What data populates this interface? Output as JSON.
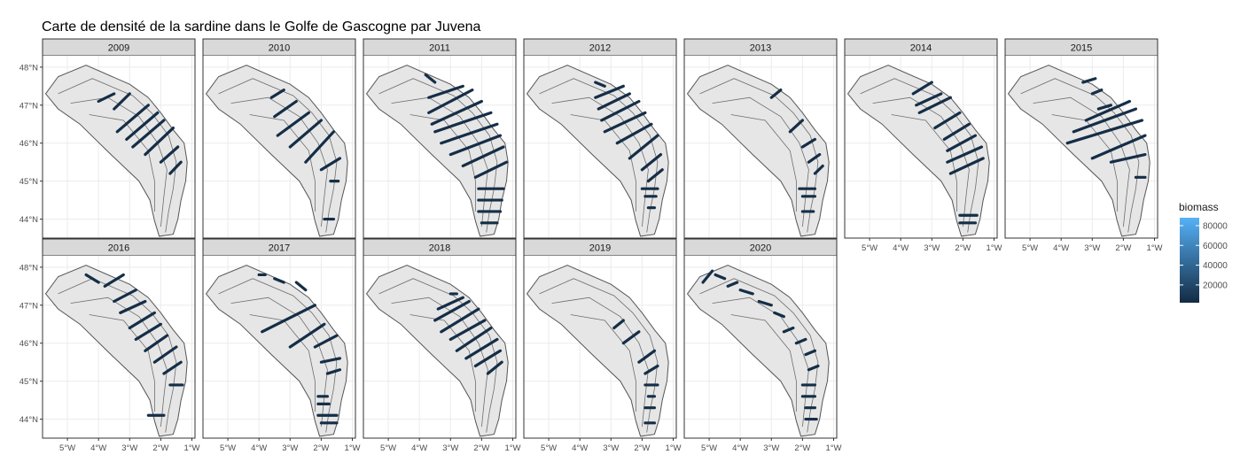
{
  "title": "Carte de densité de la sardine dans le Golfe de Gascogne par Juvena",
  "chart_data": {
    "type": "map-facets",
    "title": "Carte de densité de la sardine dans le Golfe de Gascogne par Juvena",
    "facet_by": "year",
    "x_ticks": [
      "5°W",
      "4°W",
      "3°W",
      "2°W",
      "1°W"
    ],
    "x_tick_values": [
      -5,
      -4,
      -3,
      -2,
      -1
    ],
    "y_ticks": [
      "48°N",
      "47°N",
      "46°N",
      "45°N",
      "44°N"
    ],
    "y_tick_values": [
      48,
      47,
      46,
      45,
      44
    ],
    "xlim": [
      -5.8,
      -0.9
    ],
    "ylim": [
      43.5,
      48.3
    ],
    "legend": {
      "title": "biomass",
      "position": "right",
      "ticks": [
        80000,
        60000,
        40000,
        20000
      ],
      "labels": [
        "80000",
        "60000",
        "40000",
        "20000"
      ],
      "range": [
        2000,
        88000
      ],
      "low_color": "#132b43",
      "high_color": "#56b1f7"
    },
    "coast": [
      [
        -5.7,
        47.3
      ],
      [
        -5.3,
        47.75
      ],
      [
        -4.4,
        48.05
      ],
      [
        -3.0,
        47.55
      ],
      [
        -2.4,
        47.2
      ],
      [
        -2.0,
        46.8
      ],
      [
        -1.6,
        46.35
      ],
      [
        -1.25,
        46.0
      ],
      [
        -1.15,
        45.5
      ],
      [
        -1.2,
        45.0
      ],
      [
        -1.35,
        44.5
      ],
      [
        -1.45,
        44.0
      ],
      [
        -1.6,
        43.6
      ],
      [
        -2.05,
        43.55
      ]
    ],
    "shelf_edge": [
      [
        -2.05,
        43.55
      ],
      [
        -2.2,
        43.95
      ],
      [
        -2.35,
        44.5
      ],
      [
        -2.7,
        45.0
      ],
      [
        -3.6,
        45.7
      ],
      [
        -4.6,
        46.5
      ],
      [
        -5.3,
        46.9
      ],
      [
        -5.7,
        47.3
      ]
    ],
    "isobaths": [
      [
        [
          -5.3,
          47.3
        ],
        [
          -4.2,
          47.7
        ],
        [
          -2.9,
          47.25
        ],
        [
          -2.3,
          46.8
        ],
        [
          -1.75,
          46.2
        ],
        [
          -1.5,
          45.5
        ],
        [
          -1.6,
          44.8
        ],
        [
          -1.75,
          44.2
        ],
        [
          -1.85,
          43.65
        ]
      ],
      [
        [
          -4.9,
          47.05
        ],
        [
          -3.7,
          47.2
        ],
        [
          -2.7,
          46.7
        ],
        [
          -2.1,
          46.0
        ],
        [
          -1.8,
          45.3
        ],
        [
          -1.9,
          44.6
        ],
        [
          -2.0,
          43.8
        ]
      ],
      [
        [
          -4.3,
          46.75
        ],
        [
          -3.2,
          46.6
        ],
        [
          -2.4,
          45.8
        ],
        [
          -2.2,
          45.0
        ],
        [
          -2.2,
          44.2
        ]
      ]
    ],
    "panels": [
      {
        "year": "2009",
        "transects": [
          [
            -4.0,
            47.1,
            -3.5,
            47.3
          ],
          [
            -3.5,
            46.9,
            -3.0,
            47.3
          ],
          [
            -3.4,
            46.3,
            -2.4,
            47.0
          ],
          [
            -3.1,
            46.1,
            -2.1,
            46.8
          ],
          [
            -2.9,
            45.9,
            -1.9,
            46.6
          ],
          [
            -2.5,
            45.7,
            -1.6,
            46.4
          ],
          [
            -2.0,
            45.5,
            -1.45,
            45.9
          ],
          [
            -1.7,
            45.2,
            -1.35,
            45.5
          ]
        ]
      },
      {
        "year": "2010",
        "transects": [
          [
            -3.6,
            47.2,
            -3.2,
            47.4
          ],
          [
            -3.5,
            46.7,
            -2.8,
            47.1
          ],
          [
            -3.4,
            46.2,
            -2.4,
            46.8
          ],
          [
            -3.0,
            45.9,
            -2.0,
            46.6
          ],
          [
            -2.5,
            45.5,
            -1.6,
            46.3
          ],
          [
            -2.0,
            45.3,
            -1.4,
            45.6
          ],
          [
            -1.7,
            45.0,
            -1.45,
            45.0
          ],
          [
            -1.9,
            44.0,
            -1.6,
            44.0
          ]
        ]
      },
      {
        "year": "2011",
        "transects": [
          [
            -3.8,
            47.8,
            -3.5,
            47.6
          ],
          [
            -3.7,
            47.2,
            -2.6,
            47.5
          ],
          [
            -3.7,
            46.8,
            -2.3,
            47.4
          ],
          [
            -3.6,
            46.5,
            -2.0,
            47.1
          ],
          [
            -3.5,
            46.3,
            -1.7,
            46.8
          ],
          [
            -3.3,
            46.0,
            -1.5,
            46.5
          ],
          [
            -3.0,
            45.7,
            -1.4,
            46.2
          ],
          [
            -2.6,
            45.4,
            -1.3,
            45.9
          ],
          [
            -2.2,
            45.1,
            -1.2,
            45.5
          ],
          [
            -2.1,
            44.8,
            -1.3,
            44.8
          ],
          [
            -2.1,
            44.5,
            -1.35,
            44.5
          ],
          [
            -2.1,
            44.2,
            -1.4,
            44.2
          ],
          [
            -2.0,
            43.9,
            -1.5,
            43.9
          ]
        ]
      },
      {
        "year": "2012",
        "transects": [
          [
            -3.5,
            47.6,
            -3.2,
            47.5
          ],
          [
            -3.5,
            47.2,
            -2.6,
            47.5
          ],
          [
            -3.4,
            46.9,
            -2.4,
            47.3
          ],
          [
            -3.3,
            46.6,
            -2.1,
            47.1
          ],
          [
            -3.2,
            46.3,
            -1.9,
            46.8
          ],
          [
            -2.8,
            46.0,
            -1.7,
            46.5
          ],
          [
            -2.4,
            45.6,
            -1.5,
            46.2
          ],
          [
            -2.0,
            45.3,
            -1.4,
            45.7
          ],
          [
            -1.8,
            45.0,
            -1.35,
            45.3
          ],
          [
            -2.0,
            44.8,
            -1.5,
            44.8
          ],
          [
            -1.9,
            44.6,
            -1.55,
            44.6
          ],
          [
            -1.8,
            44.3,
            -1.6,
            44.3
          ]
        ]
      },
      {
        "year": "2013",
        "transects": [
          [
            -3.0,
            47.2,
            -2.7,
            47.4
          ],
          [
            -2.4,
            46.3,
            -2.0,
            46.6
          ],
          [
            -2.0,
            45.9,
            -1.6,
            46.1
          ],
          [
            -1.8,
            45.5,
            -1.45,
            45.7
          ],
          [
            -1.6,
            45.2,
            -1.35,
            45.4
          ],
          [
            -2.1,
            44.8,
            -1.6,
            44.8
          ],
          [
            -2.0,
            44.6,
            -1.6,
            44.6
          ],
          [
            -2.0,
            44.2,
            -1.65,
            44.2
          ]
        ]
      },
      {
        "year": "2014",
        "transects": [
          [
            -3.6,
            47.3,
            -3.0,
            47.6
          ],
          [
            -3.5,
            47.0,
            -2.7,
            47.3
          ],
          [
            -3.4,
            46.8,
            -2.4,
            47.2
          ],
          [
            -2.9,
            46.4,
            -2.1,
            46.8
          ],
          [
            -2.6,
            46.1,
            -1.8,
            46.5
          ],
          [
            -2.5,
            45.8,
            -1.6,
            46.2
          ],
          [
            -2.5,
            45.5,
            -1.4,
            45.9
          ],
          [
            -2.4,
            45.2,
            -1.35,
            45.6
          ],
          [
            -2.1,
            44.1,
            -1.55,
            44.1
          ],
          [
            -2.1,
            43.9,
            -1.6,
            43.9
          ]
        ]
      },
      {
        "year": "2015",
        "transects": [
          [
            -3.3,
            47.6,
            -2.9,
            47.7
          ],
          [
            -3.0,
            47.3,
            -2.7,
            47.4
          ],
          [
            -2.8,
            46.9,
            -2.4,
            47.0
          ],
          [
            -3.2,
            46.6,
            -1.8,
            47.1
          ],
          [
            -3.6,
            46.3,
            -1.6,
            46.9
          ],
          [
            -3.8,
            46.0,
            -1.4,
            46.6
          ],
          [
            -3.0,
            45.6,
            -1.3,
            46.2
          ],
          [
            -2.4,
            45.5,
            -1.3,
            45.7
          ],
          [
            -1.6,
            45.1,
            -1.3,
            45.1
          ]
        ]
      },
      {
        "year": "2016",
        "transects": [
          [
            -4.4,
            47.8,
            -4.0,
            47.6
          ],
          [
            -3.8,
            47.5,
            -3.2,
            47.8
          ],
          [
            -3.5,
            47.1,
            -2.8,
            47.4
          ],
          [
            -3.3,
            46.8,
            -2.5,
            47.1
          ],
          [
            -3.0,
            46.4,
            -2.2,
            46.8
          ],
          [
            -2.8,
            46.1,
            -2.0,
            46.5
          ],
          [
            -2.5,
            45.8,
            -1.8,
            46.2
          ],
          [
            -2.2,
            45.5,
            -1.5,
            45.9
          ],
          [
            -1.9,
            45.2,
            -1.35,
            45.5
          ],
          [
            -1.7,
            44.9,
            -1.3,
            44.9
          ],
          [
            -2.4,
            44.1,
            -1.9,
            44.1
          ]
        ]
      },
      {
        "year": "2017",
        "transects": [
          [
            -4.0,
            47.8,
            -3.8,
            47.8
          ],
          [
            -3.5,
            47.7,
            -3.2,
            47.6
          ],
          [
            -2.8,
            47.6,
            -2.5,
            47.4
          ],
          [
            -3.9,
            46.3,
            -2.2,
            47.0
          ],
          [
            -3.0,
            45.9,
            -1.9,
            46.5
          ],
          [
            -2.2,
            45.9,
            -1.5,
            46.2
          ],
          [
            -2.0,
            45.5,
            -1.4,
            45.6
          ],
          [
            -1.8,
            45.2,
            -1.4,
            45.3
          ],
          [
            -2.1,
            44.6,
            -1.8,
            44.6
          ],
          [
            -2.1,
            44.4,
            -1.75,
            44.4
          ],
          [
            -2.1,
            44.1,
            -1.5,
            44.1
          ],
          [
            -2.0,
            43.9,
            -1.5,
            43.9
          ]
        ]
      },
      {
        "year": "2018",
        "transects": [
          [
            -3.0,
            47.3,
            -2.8,
            47.3
          ],
          [
            -3.4,
            46.9,
            -2.6,
            47.2
          ],
          [
            -3.5,
            46.6,
            -2.4,
            47.1
          ],
          [
            -3.3,
            46.3,
            -2.1,
            46.9
          ],
          [
            -3.0,
            46.1,
            -1.9,
            46.6
          ],
          [
            -2.8,
            45.8,
            -1.7,
            46.4
          ],
          [
            -2.5,
            45.6,
            -1.5,
            46.1
          ],
          [
            -2.2,
            45.4,
            -1.4,
            45.8
          ],
          [
            -1.8,
            45.2,
            -1.35,
            45.5
          ]
        ]
      },
      {
        "year": "2019",
        "transects": [
          [
            -2.9,
            46.4,
            -2.6,
            46.6
          ],
          [
            -2.6,
            46.0,
            -2.1,
            46.3
          ],
          [
            -2.1,
            45.5,
            -1.6,
            45.8
          ],
          [
            -1.9,
            45.2,
            -1.5,
            45.4
          ],
          [
            -1.9,
            44.9,
            -1.5,
            44.9
          ],
          [
            -1.8,
            44.6,
            -1.6,
            44.6
          ],
          [
            -1.9,
            44.3,
            -1.6,
            44.3
          ],
          [
            -1.9,
            43.9,
            -1.6,
            43.9
          ]
        ]
      },
      {
        "year": "2020",
        "transects": [
          [
            -5.2,
            47.6,
            -4.9,
            47.9
          ],
          [
            -4.8,
            47.8,
            -4.5,
            47.7
          ],
          [
            -4.4,
            47.5,
            -4.1,
            47.6
          ],
          [
            -4.0,
            47.4,
            -3.6,
            47.3
          ],
          [
            -3.4,
            47.1,
            -3.0,
            47.0
          ],
          [
            -2.9,
            46.8,
            -2.6,
            46.7
          ],
          [
            -2.6,
            46.3,
            -2.3,
            46.4
          ],
          [
            -2.2,
            46.0,
            -1.9,
            46.1
          ],
          [
            -1.9,
            45.7,
            -1.6,
            45.8
          ],
          [
            -1.8,
            45.3,
            -1.5,
            45.4
          ],
          [
            -2.0,
            44.9,
            -1.6,
            44.9
          ],
          [
            -2.0,
            44.6,
            -1.6,
            44.6
          ],
          [
            -1.9,
            44.3,
            -1.6,
            44.3
          ],
          [
            -1.9,
            44.0,
            -1.55,
            44.0
          ]
        ]
      }
    ]
  }
}
